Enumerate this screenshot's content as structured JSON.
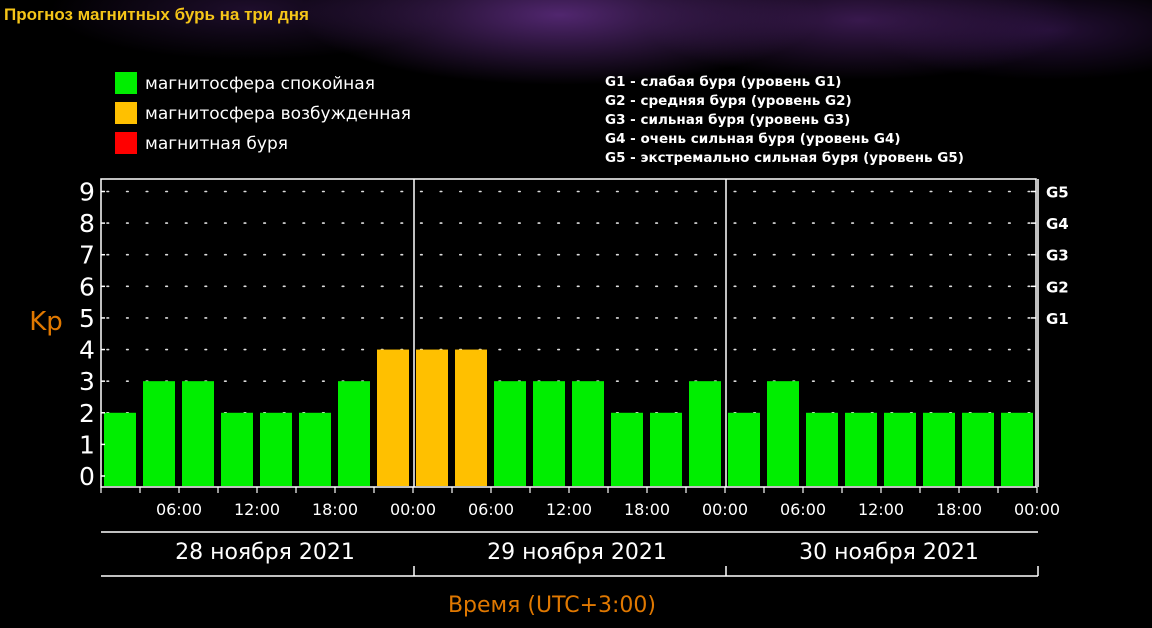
{
  "page": {
    "title": "Прогноз магнитных бурь на три дня"
  },
  "colors": {
    "calm": "#00ee00",
    "excited": "#ffc000",
    "storm": "#ff0000",
    "axis": "#ffffff",
    "label": "#e07800",
    "title": "#f5c518"
  },
  "legend": [
    {
      "label": "магнитосфера спокойная",
      "color": "#00ee00"
    },
    {
      "label": "магнитосфера возбужденная",
      "color": "#ffc000"
    },
    {
      "label": "магнитная буря",
      "color": "#ff0000"
    }
  ],
  "storm_levels": [
    "G1 - слабая буря (уровень G1)",
    "G2 - средняя буря (уровень G2)",
    "G3 - сильная буря (уровень G3)",
    "G4 - очень сильная буря (уровень G4)",
    "G5 - экстремально сильная буря (уровень G5)"
  ],
  "chart_data": {
    "type": "bar",
    "ylabel": "Kp",
    "xlabel": "Время (UTC+3:00)",
    "ylim": [
      0,
      9
    ],
    "y_ticks": [
      "0",
      "1",
      "2",
      "3",
      "4",
      "5",
      "6",
      "7",
      "8",
      "9"
    ],
    "right_ticks": [
      {
        "value": 5,
        "label": "G1"
      },
      {
        "value": 6,
        "label": "G2"
      },
      {
        "value": 7,
        "label": "G3"
      },
      {
        "value": 8,
        "label": "G4"
      },
      {
        "value": 9,
        "label": "G5"
      }
    ],
    "x_tick_labels": [
      "06:00",
      "12:00",
      "18:00",
      "00:00",
      "06:00",
      "12:00",
      "18:00",
      "00:00",
      "06:00",
      "12:00",
      "18:00",
      "00:00"
    ],
    "days": [
      "28 ноября 2021",
      "29 ноября 2021",
      "30 ноября 2021"
    ],
    "values": [
      2,
      3,
      3,
      2,
      2,
      2,
      3,
      4,
      4,
      4,
      3,
      3,
      3,
      2,
      2,
      3,
      2,
      3,
      2,
      2,
      2,
      2,
      2,
      2
    ],
    "colors": [
      "calm",
      "calm",
      "calm",
      "calm",
      "calm",
      "calm",
      "calm",
      "excited",
      "excited",
      "excited",
      "calm",
      "calm",
      "calm",
      "calm",
      "calm",
      "calm",
      "calm",
      "calm",
      "calm",
      "calm",
      "calm",
      "calm",
      "calm",
      "calm"
    ],
    "grid": true
  }
}
